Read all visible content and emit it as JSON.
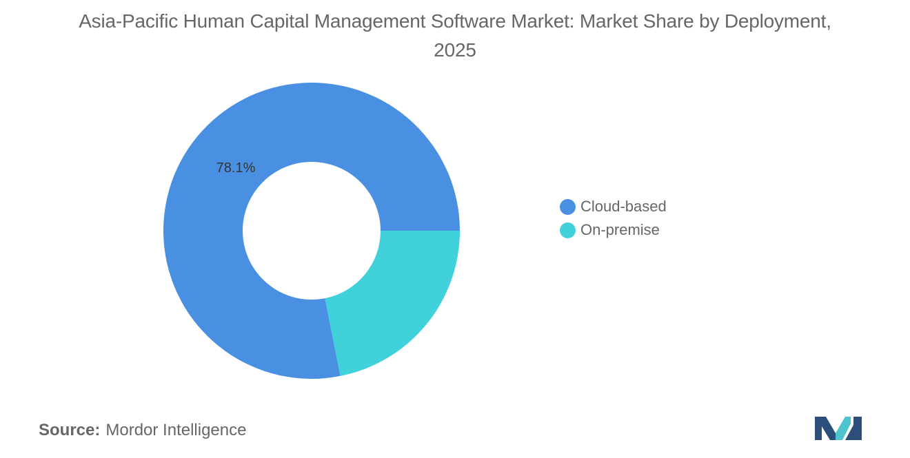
{
  "chart_data": {
    "type": "pie",
    "title": "Asia-Pacific Human Capital Management Software Market: Market Share by Deployment, 2025",
    "slices": [
      {
        "label": "Cloud-based",
        "value": 78.1,
        "color": "#4a90e2",
        "data_label": "78.1%"
      },
      {
        "label": "On-premise",
        "value": 21.9,
        "color": "#40d1db",
        "data_label": ""
      }
    ],
    "donut": true,
    "legend_position": "right"
  },
  "source": {
    "label": "Source:",
    "text": "Mordor Intelligence"
  },
  "logo": {
    "icon": "mordor-intelligence-logo-icon",
    "colors": [
      "#2b4f7a",
      "#4dc3cf"
    ]
  }
}
